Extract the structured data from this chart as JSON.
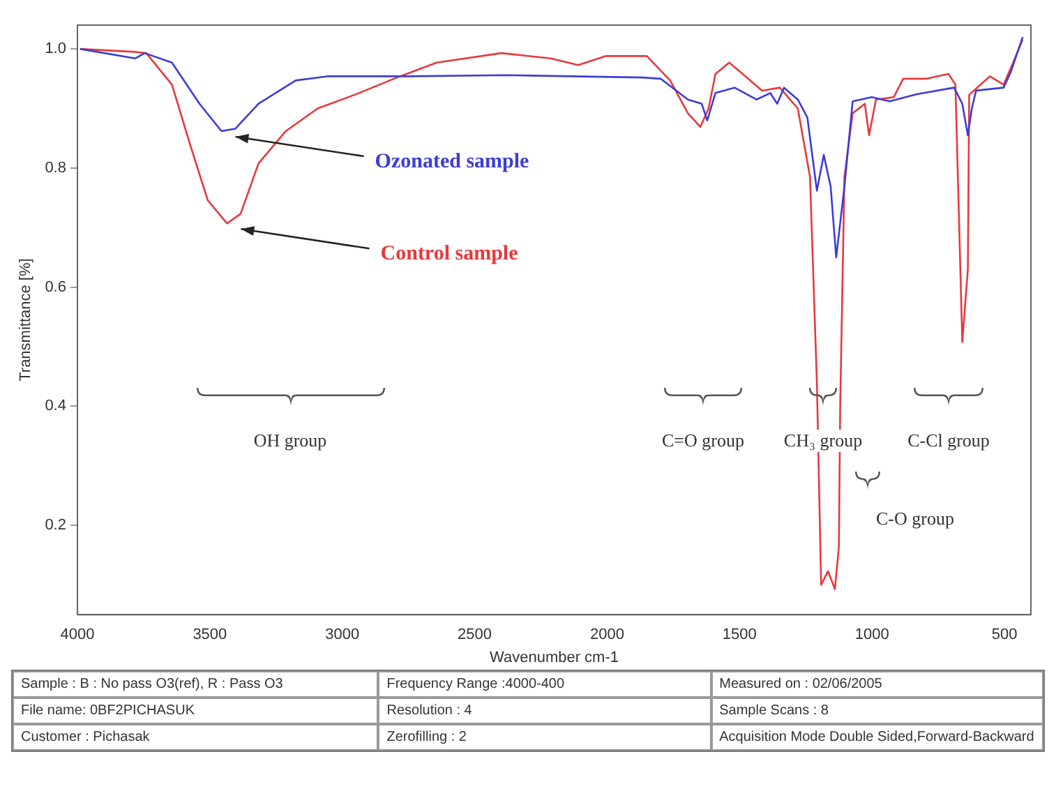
{
  "chart_data": {
    "type": "line",
    "xlabel": "Wavenumber cm-1",
    "ylabel": "Transmittance [%]",
    "xlim": [
      4000,
      400
    ],
    "xticks": [
      4000,
      3500,
      3000,
      2500,
      2000,
      1500,
      1000,
      500
    ],
    "ylim": [
      0.05,
      1.04
    ],
    "yticks": [
      {
        "value": 0.2,
        "label": "0.2"
      },
      {
        "value": 0.4,
        "label": "0.4"
      },
      {
        "value": 0.6,
        "label": "0.6"
      },
      {
        "value": 0.8,
        "label": "0.8"
      },
      {
        "value": 1,
        "label": "1.0"
      }
    ],
    "grid": false,
    "legend": false,
    "marker": "none",
    "line_style": "solid",
    "series": [
      {
        "name": "Ozonated sample",
        "color": "#3c3cd8",
        "x": [
          3990,
          3782,
          3746,
          3643,
          3539,
          3456,
          3404,
          3316,
          3176,
          3057,
          2746,
          2384,
          1866,
          1798,
          1695,
          1643,
          1622,
          1591,
          1519,
          1436,
          1384,
          1358,
          1332,
          1280,
          1244,
          1208,
          1182,
          1156,
          1135,
          1104,
          1073,
          1001,
          933,
          830,
          690,
          659,
          638,
          623,
          607,
          503,
          477,
          431
        ],
        "values": [
          1.0,
          0.984,
          0.993,
          0.977,
          0.908,
          0.862,
          0.866,
          0.908,
          0.947,
          0.954,
          0.954,
          0.956,
          0.952,
          0.95,
          0.915,
          0.908,
          0.88,
          0.926,
          0.935,
          0.915,
          0.926,
          0.908,
          0.935,
          0.915,
          0.885,
          0.762,
          0.822,
          0.769,
          0.65,
          0.769,
          0.912,
          0.919,
          0.912,
          0.924,
          0.935,
          0.908,
          0.855,
          0.9,
          0.93,
          0.935,
          0.96,
          1.02
        ]
      },
      {
        "name": "Control sample",
        "color": "#e8383c",
        "x": [
          3990,
          3782,
          3740,
          3643,
          3575,
          3508,
          3435,
          3384,
          3316,
          3213,
          3093,
          2953,
          2782,
          2643,
          2399,
          2213,
          2109,
          2006,
          1850,
          1762,
          1695,
          1648,
          1617,
          1591,
          1539,
          1488,
          1415,
          1348,
          1280,
          1234,
          1208,
          1192,
          1166,
          1140,
          1125,
          1120,
          1104,
          1073,
          1027,
          1011,
          985,
          918,
          882,
          794,
          711,
          685,
          659,
          638,
          633,
          555,
          503,
          467,
          431
        ],
        "values": [
          1.0,
          0.995,
          0.993,
          0.94,
          0.84,
          0.746,
          0.707,
          0.723,
          0.808,
          0.862,
          0.9,
          0.923,
          0.954,
          0.977,
          0.993,
          0.984,
          0.973,
          0.988,
          0.988,
          0.947,
          0.892,
          0.869,
          0.9,
          0.958,
          0.977,
          0.958,
          0.93,
          0.935,
          0.9,
          0.785,
          0.44,
          0.1,
          0.123,
          0.093,
          0.163,
          0.4,
          0.785,
          0.892,
          0.908,
          0.855,
          0.915,
          0.919,
          0.95,
          0.95,
          0.958,
          0.94,
          0.508,
          0.63,
          0.923,
          0.954,
          0.94,
          0.977,
          1.016
        ]
      }
    ],
    "annotations": [
      "OH group",
      "C=O group",
      "CH₃ group",
      "C-O group",
      "C-Cl group",
      "Sample : B : No pass O3(ref), R : Pass O3",
      "Frequency Range :4000-400",
      "Measured on : 02/06/2005",
      "File name: 0BF2PICHASUK",
      "Resolution : 4",
      "Sample Scans : 8",
      "Customer : Pichasak",
      "Zerofilling : 2",
      "Acquisition Mode Double Sided,Forward-Backward"
    ]
  }
}
